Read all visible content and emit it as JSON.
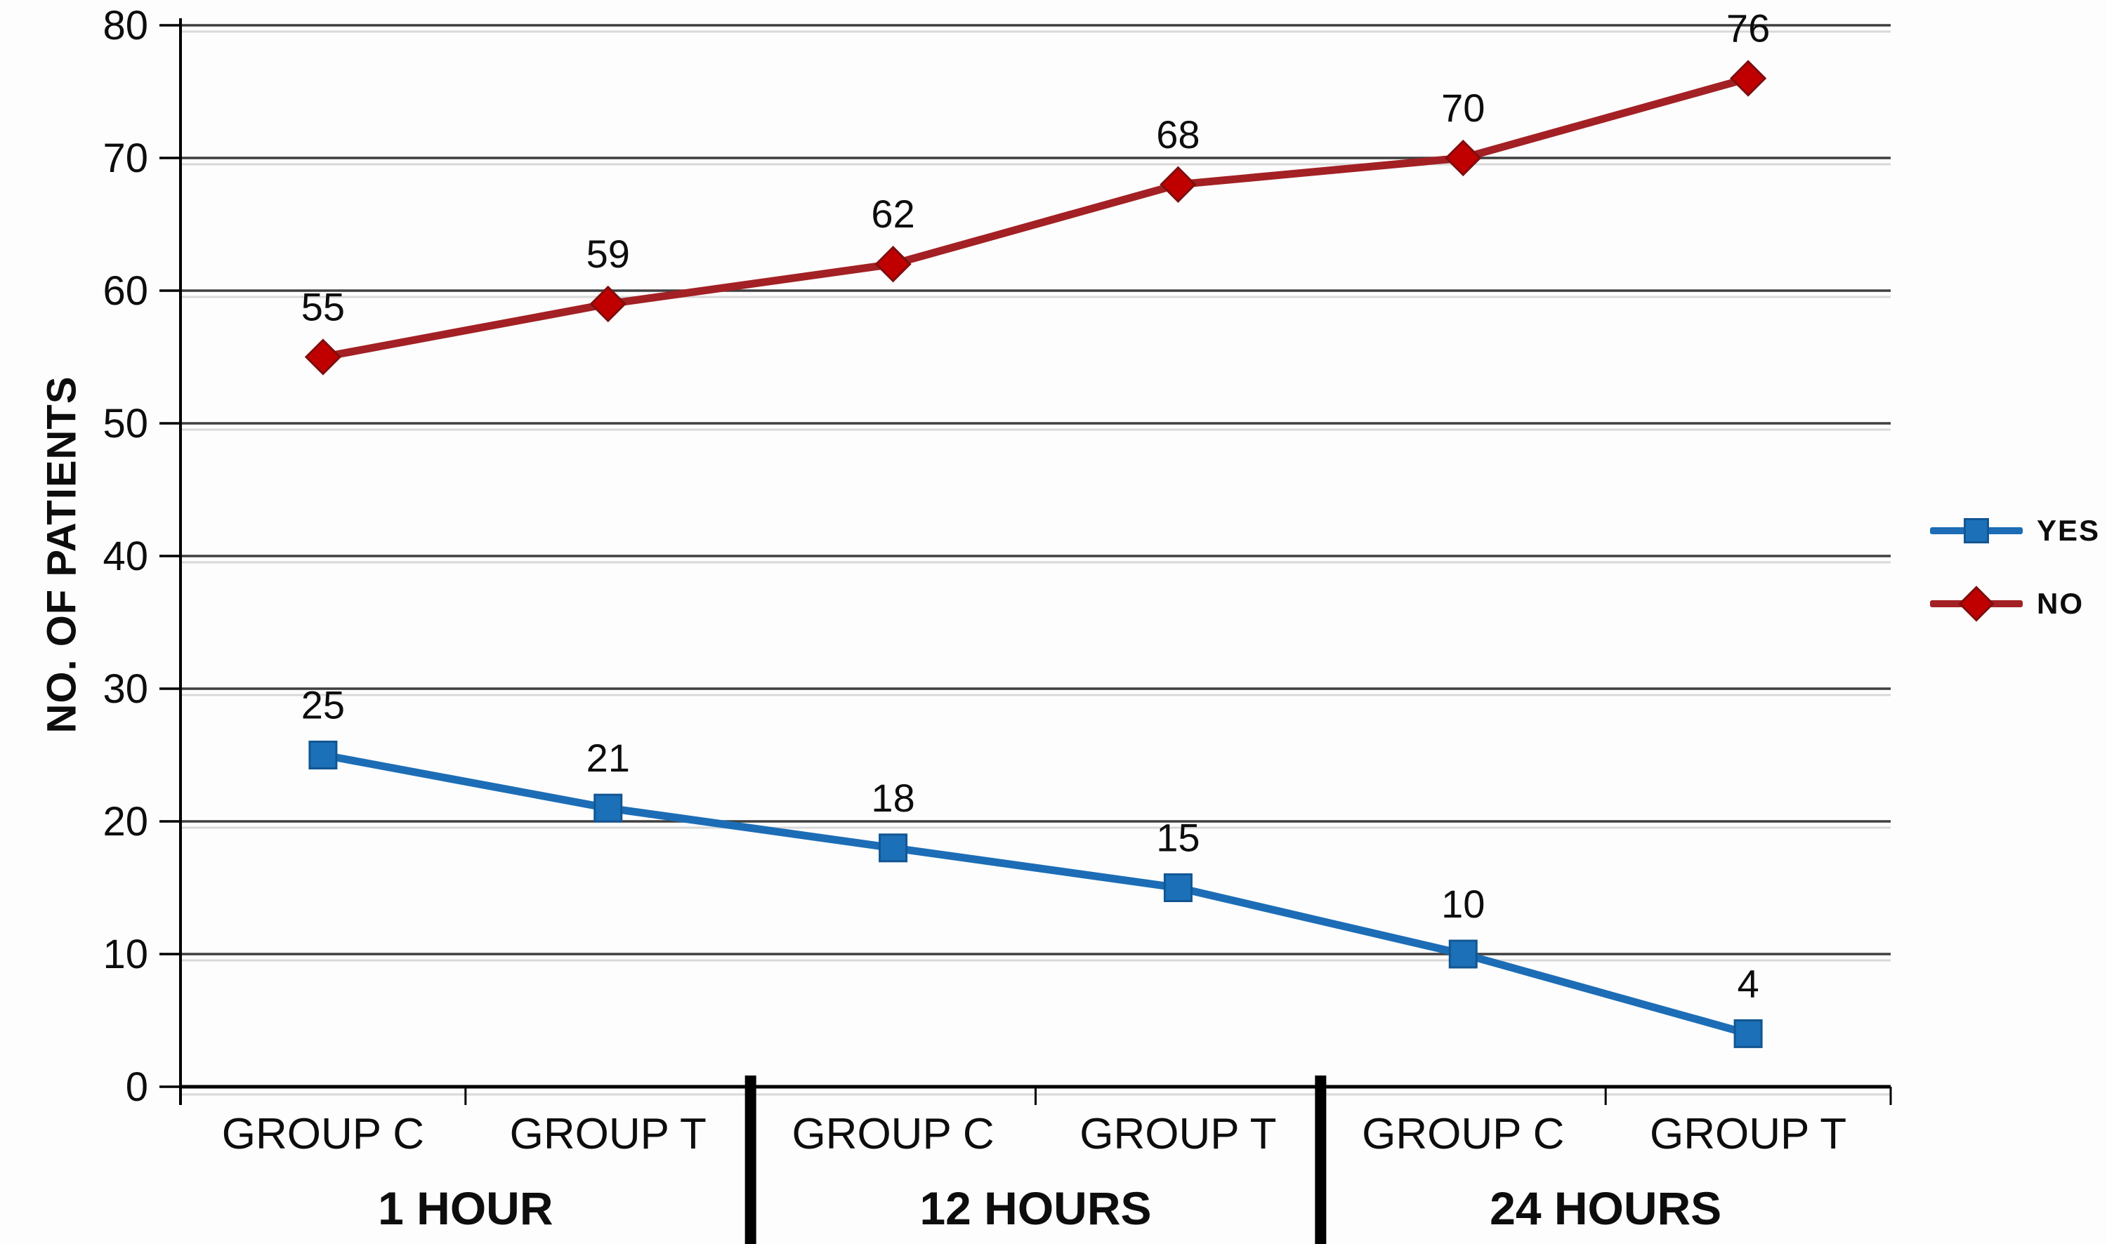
{
  "chart_data": {
    "type": "line",
    "title": "",
    "xlabel": "",
    "ylabel": "NO. OF PATIENTS",
    "ylim": [
      0,
      80
    ],
    "ytick_step": 10,
    "ytick_labels": [
      "0",
      "10",
      "20",
      "30",
      "40",
      "50",
      "60",
      "70",
      "80"
    ],
    "grid": "horizontal-major",
    "legend_position": "right-middle",
    "categories": [
      "GROUP C",
      "GROUP T",
      "GROUP C",
      "GROUP T",
      "GROUP C",
      "GROUP T"
    ],
    "groups": [
      {
        "label": "1 HOUR",
        "start": 0,
        "end": 1
      },
      {
        "label": "12 HOURS",
        "start": 2,
        "end": 3
      },
      {
        "label": "24 HOURS",
        "start": 4,
        "end": 5
      }
    ],
    "series": [
      {
        "name": "YES",
        "marker": "square",
        "line_color": "#1c6db6",
        "marker_fill": "#1c70b8",
        "marker_edge": "#125692",
        "values": [
          25,
          21,
          18,
          15,
          10,
          4
        ]
      },
      {
        "name": "NO",
        "marker": "diamond",
        "line_color": "#a32024",
        "marker_fill": "#c00000",
        "marker_edge": "#7e0e10",
        "values": [
          55,
          59,
          62,
          68,
          70,
          76
        ]
      }
    ],
    "style": {
      "background": "#fdfdfd",
      "grid_color": "#3f3f3f",
      "grid_ghost_color": "#d9d9d9",
      "axis_color": "#000000",
      "text_color": "#0d0d0d"
    }
  }
}
